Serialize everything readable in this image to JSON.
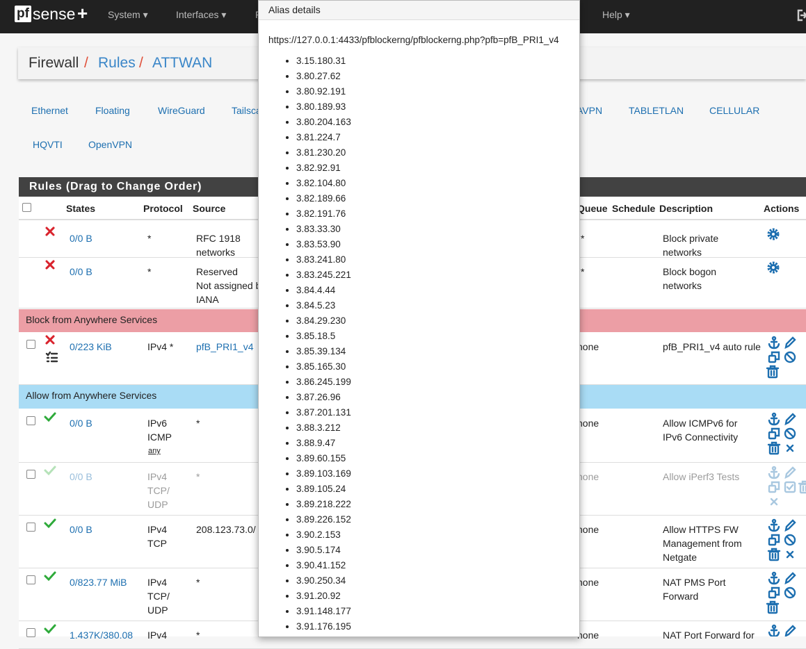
{
  "navbar": {
    "logo_box": "pf",
    "logo_text": "sense",
    "logo_plus": "+",
    "menus": [
      "System",
      "Interfaces",
      "F",
      "Help"
    ]
  },
  "breadcrumb": {
    "items": [
      "Firewall",
      "Rules",
      "ATTWAN"
    ],
    "separator": "/"
  },
  "tabs": {
    "row1": [
      "Ethernet",
      "Floating",
      "WireGuard",
      "Tailsca",
      "AVPN",
      "TABLETLAN",
      "CELLULAR"
    ],
    "row2": [
      "HQVTI",
      "OpenVPN"
    ]
  },
  "panel": {
    "title": "Rules (Drag to Change Order)",
    "columns": [
      "States",
      "Protocol",
      "Source",
      "Queue",
      "Schedule",
      "Description",
      "Actions"
    ],
    "rows": [
      {
        "states": "0/0 B",
        "protocol": [
          "*"
        ],
        "source": [
          "RFC 1918",
          "networks"
        ],
        "queue": "*",
        "description": [
          "Block private",
          "networks"
        ]
      },
      {
        "states": "0/0 B",
        "protocol": [
          "*"
        ],
        "source": [
          "Reserved",
          "Not assigned b",
          "IANA"
        ],
        "queue": "*",
        "description": [
          "Block bogon",
          "networks"
        ]
      },
      {
        "separator": "Block from Anywhere Services"
      },
      {
        "states": "0/223 KiB",
        "protocol": [
          "IPv4 *"
        ],
        "source": [
          "pfB_PRI1_v4"
        ],
        "queue": "none",
        "description": [
          "pfB_PRI1_v4 auto rule"
        ]
      },
      {
        "separator": "Allow from Anywhere Services"
      },
      {
        "states": "0/0 B",
        "protocol": [
          "IPv6",
          "ICMP"
        ],
        "protocol_link": "any",
        "source": [
          "*"
        ],
        "queue": "none",
        "description": [
          "Allow ICMPv6 for",
          "IPv6 Connectivity"
        ]
      },
      {
        "states": "0/0 B",
        "protocol": [
          "IPv4",
          "TCP/",
          "UDP"
        ],
        "source": [
          "*"
        ],
        "queue": "none",
        "description": [
          "Allow iPerf3 Tests"
        ],
        "disabled": true
      },
      {
        "states": "0/0 B",
        "protocol": [
          "IPv4",
          "TCP"
        ],
        "source": [
          "208.123.73.0/"
        ],
        "queue": "none",
        "description": [
          "Allow HTTPS FW",
          "Management from",
          "Netgate"
        ]
      },
      {
        "states": "0/823.77 MiB",
        "protocol": [
          "IPv4",
          "TCP/",
          "UDP"
        ],
        "source": [
          "*"
        ],
        "queue": "none",
        "description": [
          "NAT PMS Port",
          "Forward"
        ]
      },
      {
        "states": "1.437K/380.08",
        "protocol": [
          "IPv4"
        ],
        "source": [
          "*"
        ],
        "queue": "none",
        "description": [
          "NAT Port Forward for"
        ]
      }
    ]
  },
  "popup": {
    "title": "Alias details",
    "url": "https://127.0.0.1:4433/pfblockerng/pfblockerng.php?pfb=pfB_PRI1_v4",
    "items": [
      "3.15.180.31",
      "3.80.27.62",
      "3.80.92.191",
      "3.80.189.93",
      "3.80.204.163",
      "3.81.224.7",
      "3.81.230.20",
      "3.82.92.91",
      "3.82.104.80",
      "3.82.189.66",
      "3.82.191.76",
      "3.83.33.30",
      "3.83.53.90",
      "3.83.241.80",
      "3.83.245.221",
      "3.84.4.44",
      "3.84.5.23",
      "3.84.29.230",
      "3.85.18.5",
      "3.85.39.134",
      "3.85.165.30",
      "3.86.245.199",
      "3.87.26.96",
      "3.87.201.131",
      "3.88.3.212",
      "3.88.9.47",
      "3.89.60.155",
      "3.89.103.169",
      "3.89.105.24",
      "3.89.218.222",
      "3.89.226.152",
      "3.90.2.153",
      "3.90.5.174",
      "3.90.41.152",
      "3.90.250.34",
      "3.91.20.92",
      "3.91.148.177",
      "3.91.176.195"
    ]
  }
}
